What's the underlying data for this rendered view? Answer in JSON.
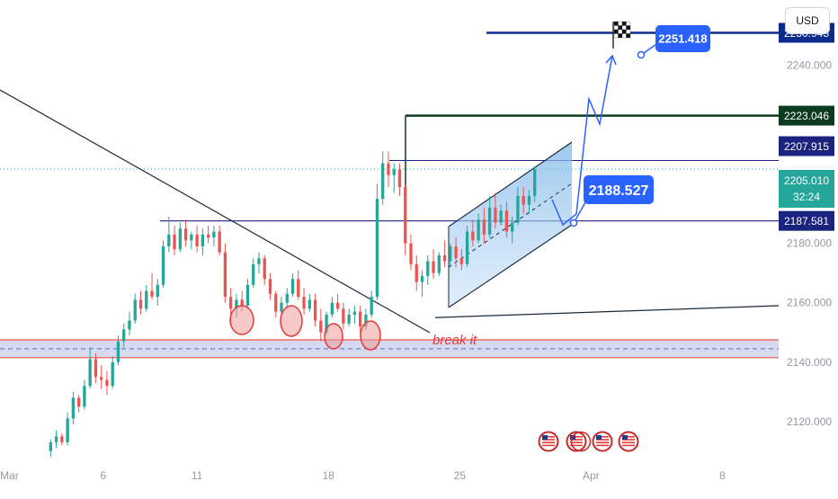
{
  "currency": "USD",
  "chart_data": {
    "type": "candlestick",
    "y_ticks": [
      "2240.000",
      "2180.000",
      "2160.000",
      "2140.000",
      "2120.000"
    ],
    "ylim": [
      2106,
      2262
    ],
    "x_ticks": [
      "Mar",
      "6",
      "11",
      "18",
      "25",
      "Apr",
      "8"
    ],
    "x_ticks_day": [
      1,
      6,
      11,
      18,
      25,
      32,
      39
    ],
    "xlim": [
      0.5,
      42
    ],
    "current_price": "2205.010",
    "countdown": "32:24",
    "price_tags": [
      {
        "label": "2250.945",
        "value": 2250.945,
        "color": "#0d2b8c"
      },
      {
        "label": "2223.046",
        "value": 2223.046,
        "color": "#0c3b20"
      },
      {
        "label": "2207.915",
        "value": 2207.915,
        "color": "#1a237e"
      },
      {
        "label": "2187.581",
        "value": 2187.581,
        "color": "#1a237e"
      }
    ],
    "annotations": [
      {
        "text": "2251.418",
        "value": 2251.418
      },
      {
        "text": "2188.527",
        "value": 2188.527
      },
      {
        "text": "break it",
        "value": 2145
      }
    ],
    "support_zone": [
      2141.5,
      2147.5
    ],
    "candles": [
      [
        3.2,
        2110,
        2114,
        2108,
        2113
      ],
      [
        3.5,
        2113,
        2117,
        2111,
        2115
      ],
      [
        3.8,
        2115,
        2116,
        2112,
        2113
      ],
      [
        4.1,
        2113,
        2123,
        2112,
        2121
      ],
      [
        4.4,
        2121,
        2130,
        2119,
        2128
      ],
      [
        4.7,
        2128,
        2129,
        2123,
        2125
      ],
      [
        5.0,
        2125,
        2134,
        2124,
        2132
      ],
      [
        5.3,
        2132,
        2145,
        2131,
        2141
      ],
      [
        5.6,
        2141,
        2143,
        2133,
        2135
      ],
      [
        5.9,
        2135,
        2139,
        2131,
        2134
      ],
      [
        6.2,
        2134,
        2137,
        2129,
        2132
      ],
      [
        6.5,
        2132,
        2142,
        2131,
        2140
      ],
      [
        6.8,
        2140,
        2149,
        2139,
        2147
      ],
      [
        7.1,
        2147,
        2153,
        2145,
        2151
      ],
      [
        7.4,
        2151,
        2157,
        2149,
        2154
      ],
      [
        7.7,
        2154,
        2163,
        2153,
        2161
      ],
      [
        8.0,
        2161,
        2164,
        2156,
        2158
      ],
      [
        8.3,
        2158,
        2166,
        2157,
        2164
      ],
      [
        8.6,
        2164,
        2170,
        2161,
        2162
      ],
      [
        8.9,
        2162,
        2168,
        2159,
        2166
      ],
      [
        9.2,
        2166,
        2181,
        2165,
        2179
      ],
      [
        9.5,
        2179,
        2189,
        2177,
        2183
      ],
      [
        9.8,
        2183,
        2186,
        2176,
        2178
      ],
      [
        10.1,
        2178,
        2187,
        2177,
        2185
      ],
      [
        10.4,
        2185,
        2188,
        2179,
        2181
      ],
      [
        10.7,
        2181,
        2184,
        2178,
        2183
      ],
      [
        11.0,
        2183,
        2186,
        2177,
        2179
      ],
      [
        11.3,
        2179,
        2185,
        2176,
        2183
      ],
      [
        11.6,
        2183,
        2186,
        2180,
        2182
      ],
      [
        11.9,
        2182,
        2186,
        2179,
        2184
      ],
      [
        12.2,
        2184,
        2186,
        2176,
        2177
      ],
      [
        12.5,
        2177,
        2180,
        2160,
        2162
      ],
      [
        12.8,
        2162,
        2165,
        2153,
        2158
      ],
      [
        13.1,
        2158,
        2163,
        2155,
        2161
      ],
      [
        13.4,
        2161,
        2164,
        2157,
        2159
      ],
      [
        13.7,
        2159,
        2168,
        2158,
        2166
      ],
      [
        14.0,
        2166,
        2175,
        2165,
        2173
      ],
      [
        14.3,
        2173,
        2177,
        2170,
        2175
      ],
      [
        14.6,
        2175,
        2176,
        2166,
        2168
      ],
      [
        14.9,
        2168,
        2170,
        2161,
        2163
      ],
      [
        15.2,
        2163,
        2164,
        2155,
        2157
      ],
      [
        15.5,
        2157,
        2162,
        2155,
        2160
      ],
      [
        15.8,
        2160,
        2165,
        2158,
        2163
      ],
      [
        16.1,
        2163,
        2170,
        2162,
        2168
      ],
      [
        16.4,
        2168,
        2171,
        2161,
        2162
      ],
      [
        16.7,
        2162,
        2165,
        2156,
        2158
      ],
      [
        17.0,
        2158,
        2163,
        2157,
        2161
      ],
      [
        17.3,
        2161,
        2163,
        2152,
        2154
      ],
      [
        17.6,
        2154,
        2158,
        2147,
        2150
      ],
      [
        17.9,
        2150,
        2157,
        2149,
        2156
      ],
      [
        18.2,
        2156,
        2162,
        2155,
        2160
      ],
      [
        18.5,
        2160,
        2163,
        2157,
        2158
      ],
      [
        18.8,
        2158,
        2160,
        2151,
        2153
      ],
      [
        19.1,
        2153,
        2158,
        2152,
        2156
      ],
      [
        19.4,
        2156,
        2159,
        2153,
        2157
      ],
      [
        19.7,
        2157,
        2159,
        2150,
        2152
      ],
      [
        20.0,
        2152,
        2158,
        2151,
        2156
      ],
      [
        20.3,
        2156,
        2164,
        2155,
        2162
      ],
      [
        20.6,
        2162,
        2200,
        2161,
        2195
      ],
      [
        20.9,
        2195,
        2211,
        2193,
        2207
      ],
      [
        21.2,
        2207,
        2211,
        2199,
        2203
      ],
      [
        21.5,
        2203,
        2207,
        2197,
        2205
      ],
      [
        21.8,
        2205,
        2207,
        2196,
        2199
      ],
      [
        22.1,
        2199,
        2200,
        2176,
        2180
      ],
      [
        22.4,
        2180,
        2183,
        2171,
        2173
      ],
      [
        22.7,
        2173,
        2176,
        2164,
        2167
      ],
      [
        23.0,
        2167,
        2171,
        2162,
        2169
      ],
      [
        23.3,
        2169,
        2176,
        2166,
        2174
      ],
      [
        23.6,
        2174,
        2178,
        2168,
        2170
      ],
      [
        23.9,
        2170,
        2177,
        2169,
        2176
      ],
      [
        24.2,
        2176,
        2181,
        2172,
        2174
      ],
      [
        24.5,
        2174,
        2180,
        2172,
        2179
      ],
      [
        24.8,
        2179,
        2182,
        2172,
        2175
      ],
      [
        25.1,
        2175,
        2178,
        2171,
        2173
      ],
      [
        25.4,
        2173,
        2186,
        2172,
        2184
      ],
      [
        25.7,
        2184,
        2188,
        2179,
        2181
      ],
      [
        26.0,
        2181,
        2190,
        2180,
        2188
      ],
      [
        26.3,
        2188,
        2192,
        2180,
        2183
      ],
      [
        26.6,
        2183,
        2196,
        2182,
        2192
      ],
      [
        26.9,
        2192,
        2197,
        2185,
        2187
      ],
      [
        27.2,
        2187,
        2193,
        2186,
        2191
      ],
      [
        27.5,
        2191,
        2194,
        2182,
        2184
      ],
      [
        27.8,
        2184,
        2189,
        2180,
        2187
      ],
      [
        28.1,
        2187,
        2199,
        2186,
        2196
      ],
      [
        28.4,
        2196,
        2199,
        2190,
        2193
      ],
      [
        28.7,
        2193,
        2198,
        2190,
        2196
      ],
      [
        29.0,
        2196,
        2206,
        2194,
        2205
      ]
    ]
  }
}
